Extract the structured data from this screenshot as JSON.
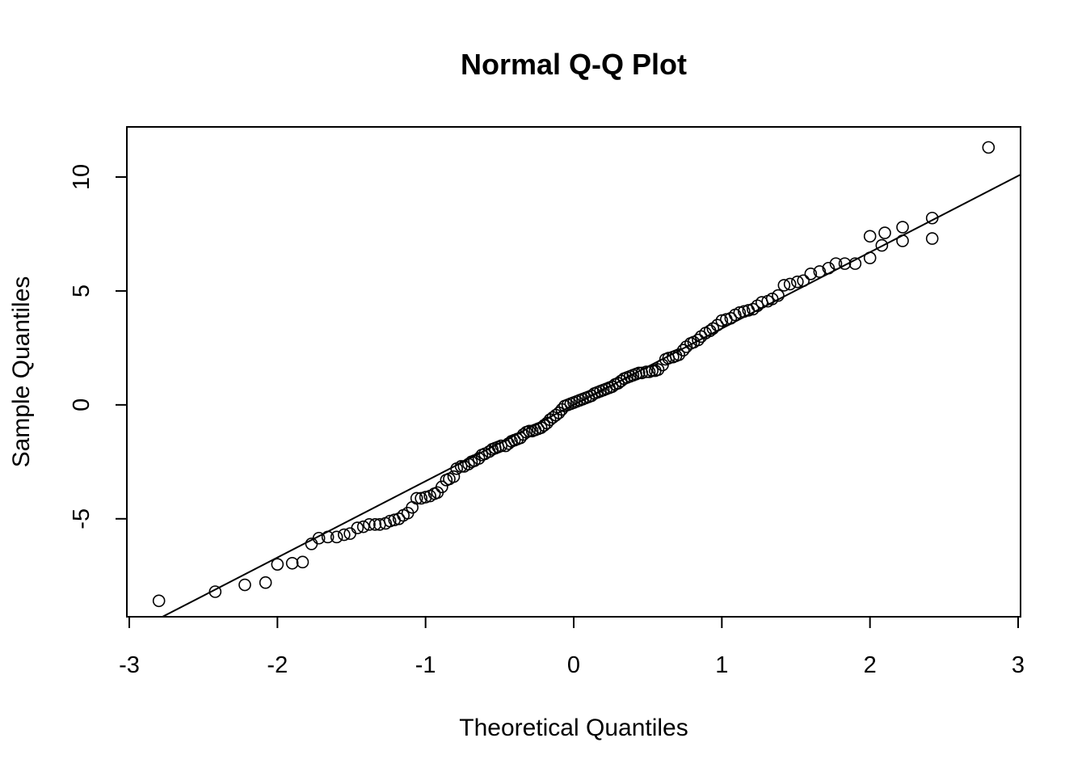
{
  "chart_data": {
    "type": "scatter",
    "title": "Normal Q-Q Plot",
    "xlabel": "Theoretical Quantiles",
    "ylabel": "Sample Quantiles",
    "xlim": [
      -3,
      3
    ],
    "ylim": [
      -9.3,
      12.2
    ],
    "xticks": [
      -3,
      -2,
      -1,
      0,
      1,
      2,
      3
    ],
    "xtick_labels": [
      "-3",
      "-2",
      "-1",
      "0",
      "1",
      "2",
      "3"
    ],
    "yticks": [
      -5,
      0,
      5,
      10
    ],
    "ytick_labels": [
      "-5",
      "0",
      "5",
      "10"
    ],
    "grid": false,
    "reference_line": {
      "intercept": 0.0,
      "slope": 3.35
    },
    "points": [
      [
        -2.8,
        -8.6
      ],
      [
        -2.42,
        -8.2
      ],
      [
        -2.22,
        -7.9
      ],
      [
        -2.08,
        -7.8
      ],
      [
        -2.0,
        -7.0
      ],
      [
        -1.9,
        -6.95
      ],
      [
        -1.83,
        -6.9
      ],
      [
        -1.77,
        -6.1
      ],
      [
        -1.72,
        -5.85
      ],
      [
        -1.66,
        -5.8
      ],
      [
        -1.6,
        -5.8
      ],
      [
        -1.55,
        -5.7
      ],
      [
        -1.51,
        -5.65
      ],
      [
        -1.46,
        -5.4
      ],
      [
        -1.42,
        -5.35
      ],
      [
        -1.38,
        -5.25
      ],
      [
        -1.34,
        -5.25
      ],
      [
        -1.31,
        -5.25
      ],
      [
        -1.27,
        -5.2
      ],
      [
        -1.24,
        -5.1
      ],
      [
        -1.21,
        -5.05
      ],
      [
        -1.18,
        -5.0
      ],
      [
        -1.15,
        -4.85
      ],
      [
        -1.12,
        -4.75
      ],
      [
        -1.09,
        -4.5
      ],
      [
        -1.06,
        -4.1
      ],
      [
        -1.03,
        -4.1
      ],
      [
        -1.0,
        -4.05
      ],
      [
        -0.97,
        -4.0
      ],
      [
        -0.94,
        -3.9
      ],
      [
        -0.92,
        -3.85
      ],
      [
        -0.89,
        -3.6
      ],
      [
        -0.86,
        -3.3
      ],
      [
        -0.84,
        -3.25
      ],
      [
        -0.81,
        -3.15
      ],
      [
        -0.79,
        -2.8
      ],
      [
        -0.76,
        -2.7
      ],
      [
        -0.74,
        -2.7
      ],
      [
        -0.71,
        -2.6
      ],
      [
        -0.69,
        -2.5
      ],
      [
        -0.67,
        -2.45
      ],
      [
        -0.64,
        -2.35
      ],
      [
        -0.62,
        -2.2
      ],
      [
        -0.6,
        -2.15
      ],
      [
        -0.57,
        -2.05
      ],
      [
        -0.55,
        -1.95
      ],
      [
        -0.53,
        -1.9
      ],
      [
        -0.51,
        -1.85
      ],
      [
        -0.49,
        -1.8
      ],
      [
        -0.46,
        -1.8
      ],
      [
        -0.44,
        -1.7
      ],
      [
        -0.42,
        -1.6
      ],
      [
        -0.4,
        -1.55
      ],
      [
        -0.38,
        -1.5
      ],
      [
        -0.36,
        -1.45
      ],
      [
        -0.34,
        -1.3
      ],
      [
        -0.32,
        -1.2
      ],
      [
        -0.3,
        -1.15
      ],
      [
        -0.28,
        -1.15
      ],
      [
        -0.26,
        -1.1
      ],
      [
        -0.24,
        -1.05
      ],
      [
        -0.22,
        -1.0
      ],
      [
        -0.2,
        -0.9
      ],
      [
        -0.18,
        -0.8
      ],
      [
        -0.16,
        -0.65
      ],
      [
        -0.14,
        -0.55
      ],
      [
        -0.12,
        -0.45
      ],
      [
        -0.1,
        -0.35
      ],
      [
        -0.08,
        -0.2
      ],
      [
        -0.06,
        -0.05
      ],
      [
        -0.04,
        0.0
      ],
      [
        -0.02,
        0.05
      ],
      [
        0.0,
        0.1
      ],
      [
        0.02,
        0.15
      ],
      [
        0.04,
        0.2
      ],
      [
        0.06,
        0.25
      ],
      [
        0.08,
        0.3
      ],
      [
        0.1,
        0.35
      ],
      [
        0.12,
        0.4
      ],
      [
        0.14,
        0.5
      ],
      [
        0.16,
        0.55
      ],
      [
        0.18,
        0.6
      ],
      [
        0.2,
        0.65
      ],
      [
        0.22,
        0.7
      ],
      [
        0.24,
        0.75
      ],
      [
        0.26,
        0.8
      ],
      [
        0.28,
        0.9
      ],
      [
        0.3,
        0.95
      ],
      [
        0.32,
        1.05
      ],
      [
        0.34,
        1.15
      ],
      [
        0.36,
        1.2
      ],
      [
        0.38,
        1.25
      ],
      [
        0.4,
        1.3
      ],
      [
        0.42,
        1.35
      ],
      [
        0.44,
        1.4
      ],
      [
        0.46,
        1.4
      ],
      [
        0.49,
        1.45
      ],
      [
        0.51,
        1.45
      ],
      [
        0.53,
        1.5
      ],
      [
        0.55,
        1.5
      ],
      [
        0.57,
        1.55
      ],
      [
        0.6,
        1.75
      ],
      [
        0.62,
        2.0
      ],
      [
        0.64,
        2.05
      ],
      [
        0.67,
        2.1
      ],
      [
        0.69,
        2.15
      ],
      [
        0.71,
        2.2
      ],
      [
        0.74,
        2.4
      ],
      [
        0.76,
        2.55
      ],
      [
        0.79,
        2.7
      ],
      [
        0.81,
        2.75
      ],
      [
        0.84,
        2.85
      ],
      [
        0.86,
        3.0
      ],
      [
        0.89,
        3.15
      ],
      [
        0.92,
        3.25
      ],
      [
        0.94,
        3.35
      ],
      [
        0.97,
        3.5
      ],
      [
        1.0,
        3.7
      ],
      [
        1.03,
        3.75
      ],
      [
        1.06,
        3.8
      ],
      [
        1.09,
        3.95
      ],
      [
        1.12,
        4.05
      ],
      [
        1.15,
        4.1
      ],
      [
        1.18,
        4.15
      ],
      [
        1.21,
        4.2
      ],
      [
        1.24,
        4.35
      ],
      [
        1.27,
        4.5
      ],
      [
        1.31,
        4.55
      ],
      [
        1.34,
        4.65
      ],
      [
        1.38,
        4.8
      ],
      [
        1.42,
        5.25
      ],
      [
        1.46,
        5.3
      ],
      [
        1.51,
        5.4
      ],
      [
        1.55,
        5.45
      ],
      [
        1.6,
        5.75
      ],
      [
        1.66,
        5.85
      ],
      [
        1.72,
        6.0
      ],
      [
        1.77,
        6.2
      ],
      [
        1.83,
        6.2
      ],
      [
        1.9,
        6.2
      ],
      [
        2.0,
        6.45
      ],
      [
        2.08,
        7.0
      ],
      [
        2.22,
        7.2
      ],
      [
        2.42,
        7.3
      ],
      [
        2.8,
        11.3
      ],
      [
        2.0,
        7.4
      ],
      [
        2.1,
        7.55
      ],
      [
        2.22,
        7.8
      ],
      [
        2.42,
        8.2
      ]
    ]
  }
}
